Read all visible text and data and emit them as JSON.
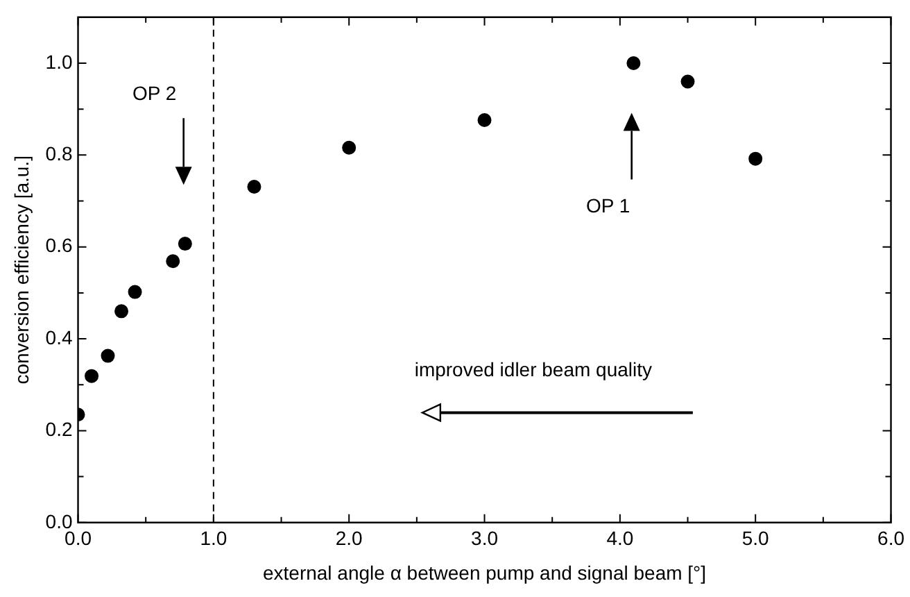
{
  "chart_data": {
    "type": "scatter",
    "xlabel": "external angle α between pump and signal beam [°]",
    "ylabel": "conversion efficiency [a.u.]",
    "x": [
      0.0,
      0.1,
      0.22,
      0.32,
      0.42,
      0.7,
      0.79,
      1.3,
      2.0,
      3.0,
      4.1,
      4.5,
      5.0
    ],
    "series": [
      {
        "color": "#000000",
        "values": [
          0.235,
          0.319,
          0.363,
          0.46,
          0.502,
          0.569,
          0.607,
          0.731,
          0.816,
          0.876,
          1.0,
          0.96,
          0.792
        ]
      }
    ],
    "marker": "circle",
    "grid": false,
    "legend": false,
    "xlim": [
      0,
      6
    ],
    "ylim": [
      0,
      1.1
    ],
    "xticks": [
      {
        "value": 0,
        "label": "0.0"
      },
      {
        "value": 0.5,
        "label": null
      },
      {
        "value": 1,
        "label": "1.0"
      },
      {
        "value": 1.5,
        "label": null
      },
      {
        "value": 2,
        "label": "2.0"
      },
      {
        "value": 2.5,
        "label": null
      },
      {
        "value": 3,
        "label": "3.0"
      },
      {
        "value": 3.5,
        "label": null
      },
      {
        "value": 4,
        "label": "4.0"
      },
      {
        "value": 4.5,
        "label": null
      },
      {
        "value": 5,
        "label": "5.0"
      },
      {
        "value": 5.5,
        "label": null
      },
      {
        "value": 6,
        "label": "6.0"
      }
    ],
    "yticks": [
      {
        "value": 0,
        "label": "0.0"
      },
      {
        "value": 0.1,
        "label": null
      },
      {
        "value": 0.2,
        "label": "0.2"
      },
      {
        "value": 0.3,
        "label": null
      },
      {
        "value": 0.4,
        "label": "0.4"
      },
      {
        "value": 0.5,
        "label": null
      },
      {
        "value": 0.6,
        "label": "0.6"
      },
      {
        "value": 0.7,
        "label": null
      },
      {
        "value": 0.8,
        "label": "0.8"
      },
      {
        "value": 0.9,
        "label": null
      },
      {
        "value": 1.0,
        "label": "1.0"
      }
    ],
    "ref_lines": [
      {
        "axis": "x",
        "value": 1.0,
        "line_style": "dashed",
        "color": "#000000"
      }
    ],
    "annotations": [
      "OP 2",
      "OP 1",
      "improved idler beam quality"
    ]
  }
}
